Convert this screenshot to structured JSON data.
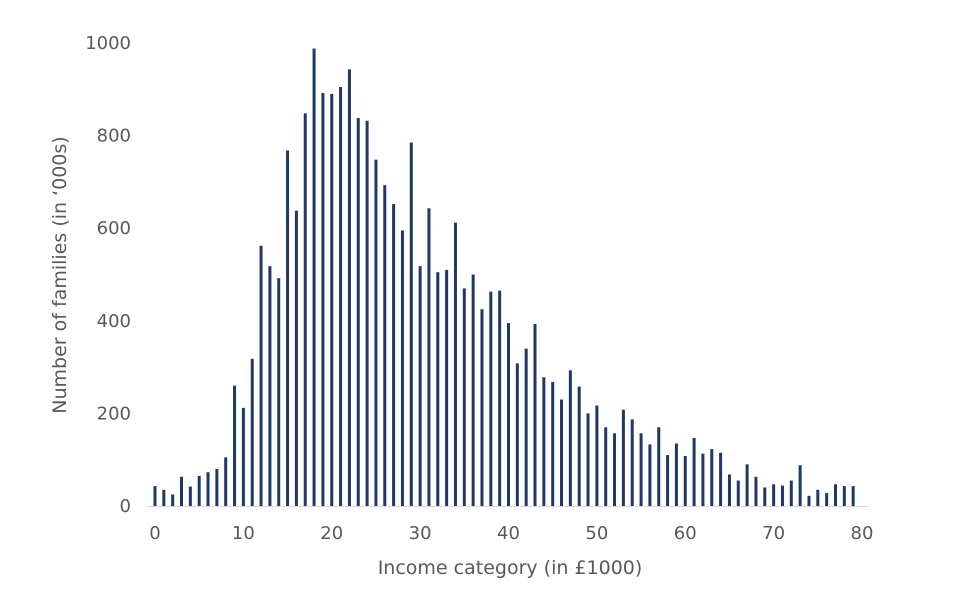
{
  "chart_data": {
    "type": "bar",
    "xlabel": "Income category (in £1000)",
    "ylabel": "Number of families (in ‘000s)",
    "xlim": [
      0,
      80
    ],
    "ylim": [
      0,
      1000
    ],
    "xticks": [
      0,
      10,
      20,
      30,
      40,
      50,
      60,
      70,
      80
    ],
    "yticks": [
      0,
      200,
      400,
      600,
      800,
      1000
    ],
    "grid": false,
    "legend": "none",
    "bar_color": "#1f3864",
    "x": [
      0,
      1,
      2,
      3,
      4,
      5,
      6,
      7,
      8,
      9,
      10,
      11,
      12,
      13,
      14,
      15,
      16,
      17,
      18,
      19,
      20,
      21,
      22,
      23,
      24,
      25,
      26,
      27,
      28,
      29,
      30,
      31,
      32,
      33,
      34,
      35,
      36,
      37,
      38,
      39,
      40,
      41,
      42,
      43,
      44,
      45,
      46,
      47,
      48,
      49,
      50,
      51,
      52,
      53,
      54,
      55,
      56,
      57,
      58,
      59,
      60,
      61,
      62,
      63,
      64,
      65,
      66,
      67,
      68,
      69,
      70,
      71,
      72,
      73,
      74,
      75,
      76,
      77,
      78,
      79
    ],
    "values": [
      43,
      35,
      25,
      63,
      42,
      65,
      73,
      80,
      105,
      260,
      212,
      318,
      562,
      518,
      492,
      768,
      638,
      848,
      988,
      892,
      890,
      905,
      943,
      838,
      832,
      748,
      693,
      652,
      595,
      785,
      518,
      643,
      505,
      510,
      612,
      470,
      500,
      425,
      463,
      465,
      395,
      308,
      340,
      393,
      278,
      268,
      230,
      293,
      258,
      200,
      217,
      170,
      157,
      208,
      187,
      157,
      133,
      170,
      110,
      135,
      108,
      147,
      113,
      123,
      115,
      68,
      55,
      90,
      63,
      40,
      47,
      44,
      55,
      88,
      22,
      35,
      28,
      47,
      43,
      43
    ]
  }
}
